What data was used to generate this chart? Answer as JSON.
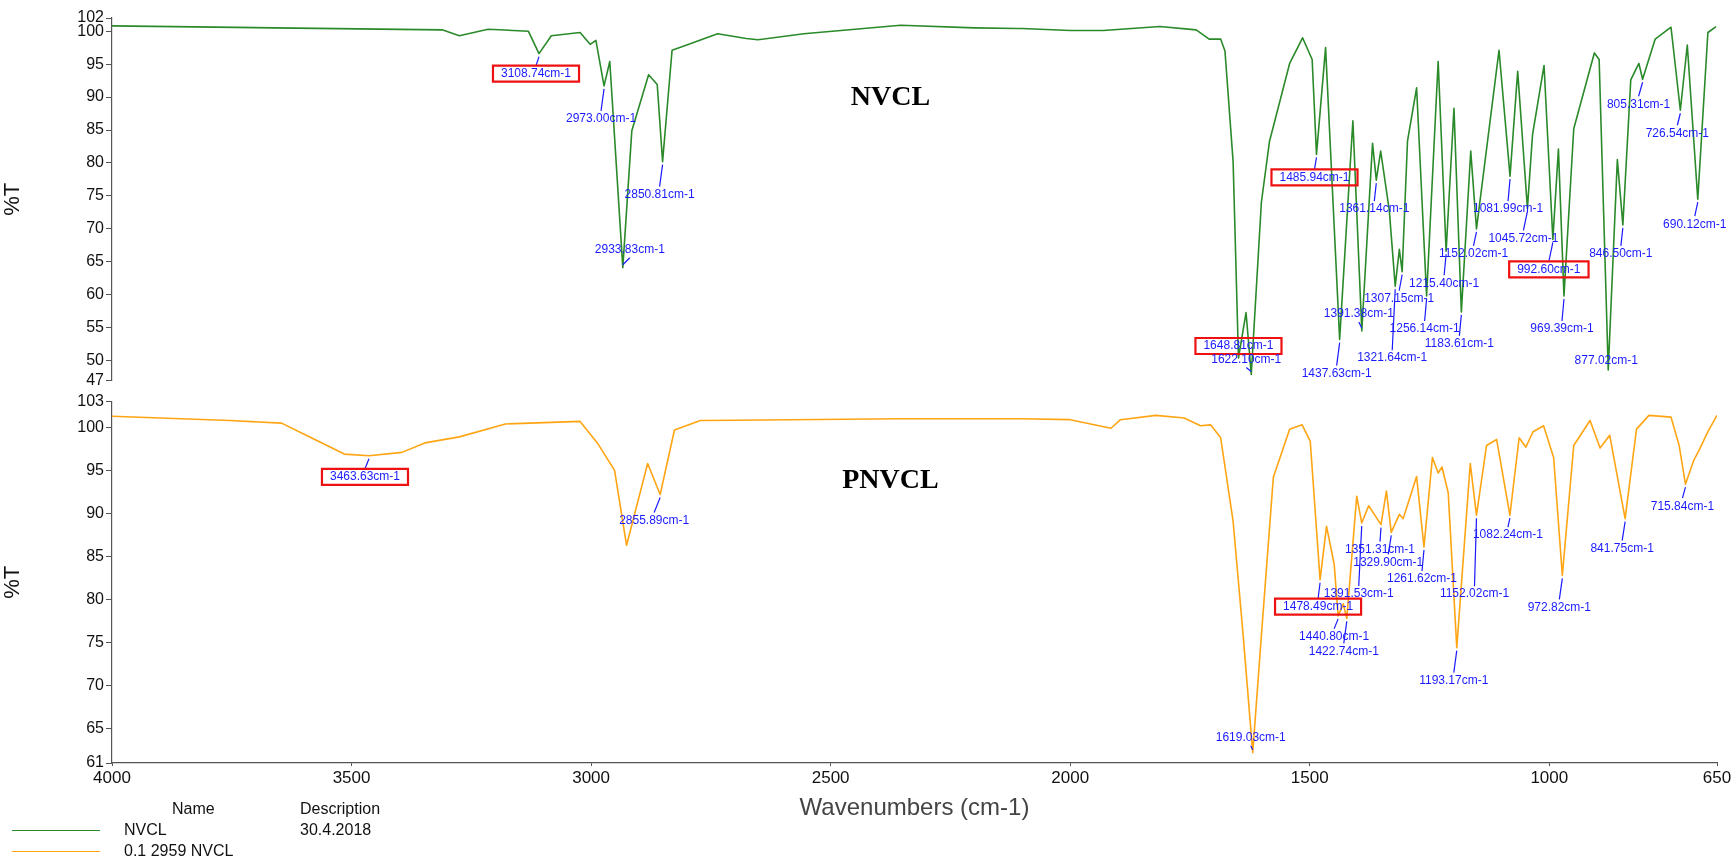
{
  "chart_data": [
    {
      "type": "line",
      "title": "NVCL",
      "ylabel": "%T",
      "legend_title": "Name",
      "legend": "bottom left",
      "tick_labels": "y",
      "xlim": [
        4000,
        650
      ],
      "xticks": [
        4000,
        3500,
        3000,
        2500,
        2000,
        1500,
        1000,
        650
      ],
      "ylim": [
        47,
        102
      ],
      "yticks": [
        47,
        50,
        55,
        60,
        65,
        70,
        75,
        80,
        85,
        90,
        95,
        100,
        102
      ],
      "x": [
        4000,
        3311,
        3275,
        3215,
        3131,
        3108.74,
        3083,
        3023,
        3002,
        2990,
        2973,
        2961,
        2933.83,
        2915,
        2880,
        2862,
        2850.81,
        2831,
        2796,
        2736,
        2676,
        2652,
        2556,
        2354,
        2200,
        2100,
        2000,
        1931,
        1813,
        1737,
        1710,
        1686,
        1677,
        1660,
        1648.81,
        1633,
        1622.1,
        1601,
        1584,
        1542,
        1515,
        1495,
        1485.94,
        1467,
        1437.63,
        1410,
        1391.38,
        1369,
        1361.14,
        1352,
        1334,
        1321.64,
        1313,
        1307.15,
        1296,
        1277,
        1256.14,
        1232,
        1215.4,
        1199,
        1183.61,
        1164,
        1152.02,
        1105,
        1081.99,
        1066,
        1045.72,
        1035,
        1011,
        992.6,
        981,
        969.39,
        949,
        906,
        896,
        877.02,
        858,
        846.5,
        830,
        813,
        805.31,
        779,
        746,
        726.54,
        712,
        690.12,
        669,
        652
      ],
      "series": [
        {
          "name": "NVCL",
          "color": "#2a8a2a",
          "values": [
            100.8,
            100.2,
            99.3,
            100.3,
            100,
            96.6,
            99.3,
            99.8,
            98,
            98.6,
            91.7,
            95.4,
            64.1,
            84.9,
            93.4,
            91.9,
            80.2,
            97.1,
            98,
            99.6,
            98.9,
            98.7,
            99.6,
            100.9,
            100.5,
            100.4,
            100.1,
            100.1,
            100.7,
            100.2,
            98.8,
            98.8,
            97,
            80.2,
            50.4,
            57.3,
            47.9,
            74,
            83.3,
            95.1,
            99,
            95.7,
            81.3,
            97.5,
            53.2,
            86.4,
            54.5,
            83,
            77.4,
            81.8,
            72.8,
            61.3,
            66.9,
            63.5,
            83.3,
            91.4,
            59.8,
            95.4,
            66.6,
            88.3,
            57.4,
            81.8,
            70,
            97.1,
            78,
            93.9,
            73.1,
            84.3,
            94.8,
            68.4,
            82.1,
            59.8,
            85.2,
            96.7,
            95.7,
            48.6,
            80.5,
            70.6,
            92.6,
            95.1,
            92.7,
            98.8,
            100.6,
            88,
            97.9,
            74.5,
            99.8,
            100.7
          ]
        }
      ],
      "annotations": [
        {
          "text": "3108.74cm-1",
          "x": 3108.74,
          "y": 96.6
        },
        {
          "text": "2973.00cm-1",
          "x": 2973,
          "y": 91.7
        },
        {
          "text": "2850.81cm-1",
          "x": 2850.81,
          "y": 80.2
        },
        {
          "text": "2933.83cm-1",
          "x": 2933.83,
          "y": 64.1
        },
        {
          "text": "1648.81cm-1",
          "x": 1648.81,
          "y": 50.4
        },
        {
          "text": "1622.10cm-1",
          "x": 1622.1,
          "y": 47.9
        },
        {
          "text": "1485.94cm-1",
          "x": 1485.94,
          "y": 81.3
        },
        {
          "text": "1437.63cm-1",
          "x": 1437.63,
          "y": 53.2
        },
        {
          "text": "1391.38cm-1",
          "x": 1391.38,
          "y": 54.5
        },
        {
          "text": "1361.14cm-1",
          "x": 1361.14,
          "y": 77.4
        },
        {
          "text": "1321.64cm-1",
          "x": 1321.64,
          "y": 61.3
        },
        {
          "text": "1307.15cm-1",
          "x": 1307.15,
          "y": 63.5
        },
        {
          "text": "1256.14cm-1",
          "x": 1256.14,
          "y": 59.8
        },
        {
          "text": "1215.40cm-1",
          "x": 1215.4,
          "y": 66.6
        },
        {
          "text": "1183.61cm-1",
          "x": 1183.61,
          "y": 57.4
        },
        {
          "text": "1152.02cm-1",
          "x": 1152.02,
          "y": 70
        },
        {
          "text": "1081.99cm-1",
          "x": 1081.99,
          "y": 78
        },
        {
          "text": "1045.72cm-1",
          "x": 1045.72,
          "y": 73.1
        },
        {
          "text": "992.60cm-1",
          "x": 992.6,
          "y": 68.4
        },
        {
          "text": "969.39cm-1",
          "x": 969.39,
          "y": 59.8
        },
        {
          "text": "877.02cm-1",
          "x": 877.02,
          "y": 48.6
        },
        {
          "text": "846.50cm-1",
          "x": 846.5,
          "y": 70.6
        },
        {
          "text": "805.31cm-1",
          "x": 805.31,
          "y": 92.7
        },
        {
          "text": "726.54cm-1",
          "x": 726.54,
          "y": 88
        },
        {
          "text": "690.12cm-1",
          "x": 690.12,
          "y": 74.5
        },
        "Description",
        "30.4.2018"
      ]
    },
    {
      "type": "line",
      "title": "PNVCL",
      "ylabel": "%T",
      "xlabel": "Wavenumbers (cm-1)",
      "legend": "bottom left",
      "xlim": [
        4000,
        650
      ],
      "xticks": [
        4000,
        3500,
        3000,
        2500,
        2000,
        1500,
        1000,
        650
      ],
      "ylim": [
        61,
        103
      ],
      "yticks": [
        61,
        65,
        70,
        75,
        80,
        85,
        90,
        95,
        100,
        103
      ],
      "x": [
        4000,
        3754,
        3646,
        3599,
        3515,
        3463.63,
        3395,
        3347,
        3275,
        3179,
        3023,
        2987,
        2951,
        2926,
        2882,
        2855.89,
        2826,
        2772,
        2354,
        2100,
        2000,
        1915,
        1895,
        1821,
        1762,
        1728,
        1707,
        1686,
        1660,
        1639,
        1619.03,
        1601,
        1576,
        1542,
        1516,
        1499,
        1478.49,
        1465,
        1449,
        1440.8,
        1430,
        1422.74,
        1402,
        1391.53,
        1377,
        1351.31,
        1340,
        1329.9,
        1313,
        1305,
        1277,
        1261.62,
        1244,
        1232,
        1224,
        1211,
        1193.17,
        1165,
        1152.02,
        1131,
        1110,
        1082.24,
        1063,
        1049,
        1034,
        1012,
        991,
        972.82,
        949,
        915,
        894,
        874,
        841.75,
        818,
        792,
        746,
        729,
        715.84,
        699,
        686,
        669,
        650
      ],
      "series": [
        {
          "name": "0.1 2959 NVCL",
          "color": "#ffa514",
          "values": [
            101.3,
            100.8,
            100.5,
            99.2,
            96.9,
            96.7,
            97.1,
            98.2,
            98.9,
            100.4,
            100.7,
            98.2,
            95,
            86.3,
            95.8,
            92.2,
            99.7,
            100.8,
            101,
            101,
            100.9,
            99.9,
            100.9,
            101.4,
            101.1,
            100.2,
            100.3,
            98.8,
            89.1,
            75.8,
            62.2,
            75.8,
            94.2,
            99.8,
            100.3,
            98.4,
            82.3,
            88.5,
            84.1,
            78.1,
            79.5,
            77.8,
            92,
            88.9,
            90.9,
            88.7,
            92.6,
            87.8,
            89.9,
            89.4,
            94.3,
            86.1,
            96.5,
            94.7,
            95.4,
            92.4,
            74.4,
            95.8,
            89.8,
            97.9,
            98.6,
            89.8,
            98.8,
            97.7,
            99.5,
            100.2,
            96.5,
            82.8,
            97.9,
            100.8,
            97.6,
            99.1,
            89.4,
            99.8,
            101.4,
            101.2,
            97.9,
            93.4,
            96.1,
            97.5,
            99.5,
            101.4
          ]
        }
      ],
      "annotations": [
        {
          "text": "3463.63cm-1",
          "x": 3463.63,
          "y": 96.7
        },
        {
          "text": "2855.89cm-1",
          "x": 2855.89,
          "y": 92.2
        },
        {
          "text": "1619.03cm-1",
          "x": 1619.03,
          "y": 62.2
        },
        {
          "text": "1478.49cm-1",
          "x": 1478.49,
          "y": 82.3
        },
        {
          "text": "1440.80cm-1",
          "x": 1440.8,
          "y": 78.1
        },
        {
          "text": "1422.74cm-1",
          "x": 1422.74,
          "y": 77.8
        },
        {
          "text": "1391.53cm-1",
          "x": 1391.53,
          "y": 88.9
        },
        {
          "text": "1351.31cm-1",
          "x": 1351.31,
          "y": 88.7
        },
        {
          "text": "1329.90cm-1",
          "x": 1329.9,
          "y": 87.8
        },
        {
          "text": "1261.62cm-1",
          "x": 1261.62,
          "y": 86.1
        },
        {
          "text": "1152.02cm-1",
          "x": 1152.02,
          "y": 89.8
        },
        {
          "text": "1193.17cm-1",
          "x": 1193.17,
          "y": 74.4
        },
        {
          "text": "1082.24cm-1",
          "x": 1082.24,
          "y": 89.8
        },
        {
          "text": "972.82cm-1",
          "x": 972.82,
          "y": 82.8
        },
        {
          "text": "841.75cm-1",
          "x": 841.75,
          "y": 89.4
        },
        {
          "text": "715.84cm-1",
          "x": 715.84,
          "y": 93.4
        }
      ]
    }
  ]
}
